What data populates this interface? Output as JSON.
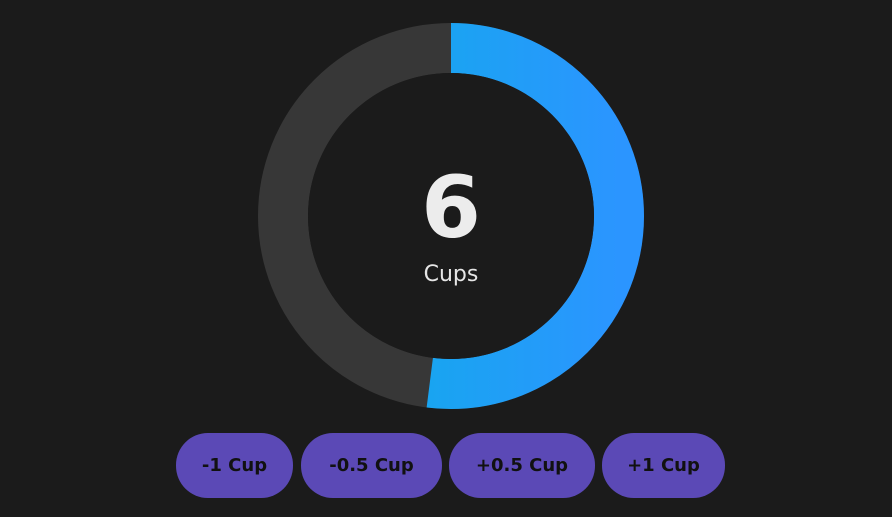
{
  "tracker": {
    "count": "6",
    "unit": "Cups",
    "progress": 0.52,
    "track_color": "#373737",
    "inner_color": "#1b1b1b",
    "gradient_start": "#0bb0e6",
    "gradient_end": "#2b95ff"
  },
  "buttons": [
    {
      "label": "-1 Cup"
    },
    {
      "label": "-0.5 Cup"
    },
    {
      "label": "+0.5 Cup"
    },
    {
      "label": "+1 Cup"
    }
  ],
  "button_color": "#5b49b6"
}
